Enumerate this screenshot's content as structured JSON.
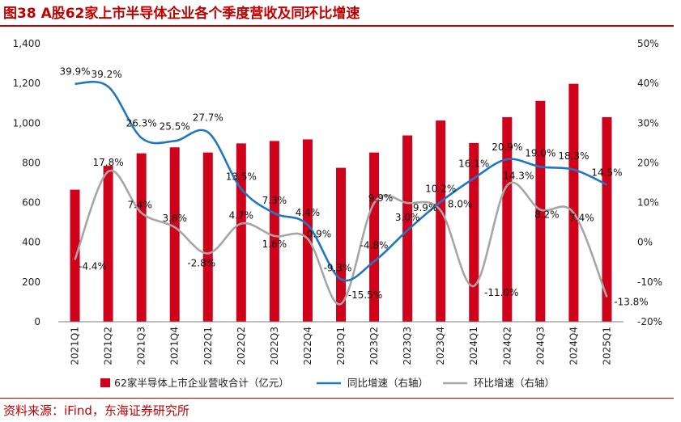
{
  "header": {
    "title": "图38 A股62家上市半导体企业各个季度营收及同环比增速"
  },
  "footer": {
    "source": "资料来源：iFind，东海证券研究所"
  },
  "colors": {
    "bar": "#d0021b",
    "yoy_line": "#1f77c4",
    "qoq_line": "#a6a6a6",
    "accent": "#c00000"
  },
  "chart_data": {
    "type": "bar",
    "categories": [
      "2021Q1",
      "2021Q2",
      "2021Q3",
      "2021Q4",
      "2022Q1",
      "2022Q2",
      "2022Q3",
      "2022Q4",
      "2023Q1",
      "2023Q2",
      "2023Q3",
      "2023Q4",
      "2024Q1",
      "2024Q2",
      "2024Q3",
      "2024Q4",
      "2025Q1"
    ],
    "series": [
      {
        "name": "62家半导体上市企业营收合计（亿元）",
        "kind": "bar",
        "axis": "left",
        "values": [
          665,
          785,
          848,
          878,
          852,
          898,
          910,
          918,
          775,
          852,
          938,
          1013,
          900,
          1030,
          1112,
          1198,
          1030
        ]
      },
      {
        "name": "同比增速（右轴）",
        "kind": "line",
        "axis": "right",
        "values": [
          39.9,
          39.2,
          26.3,
          25.5,
          27.7,
          13.5,
          7.3,
          4.4,
          -9.3,
          -4.8,
          3.0,
          10.2,
          16.1,
          20.9,
          19.0,
          18.3,
          14.5
        ],
        "labels": [
          "39.9%",
          "39.2%",
          "26.3%",
          "25.5%",
          "27.7%",
          "13.5%",
          "7.3%",
          "4.4%",
          "-9.3%",
          "-4.8%",
          "3.0%",
          "10.2%",
          "16.1%",
          "20.9%",
          "19.0%",
          "18.3%",
          "14.5%"
        ]
      },
      {
        "name": "环比增速（右轴）",
        "kind": "line",
        "axis": "right",
        "values": [
          -4.4,
          17.8,
          7.4,
          3.8,
          -2.8,
          4.7,
          1.6,
          0.9,
          -15.5,
          9.9,
          9.9,
          8.0,
          -11.0,
          14.3,
          8.2,
          7.4,
          -13.8
        ],
        "labels": [
          "-4.4%",
          "17.8%",
          "7.4%",
          "3.8%",
          "-2.8%",
          "4.7%",
          "1.6%",
          "0.9%",
          "-15.5%",
          "9.9%",
          "9.9%",
          "8.0%",
          "-11.0%",
          "14.3%",
          "8.2%",
          "7.4%",
          "-13.8%"
        ]
      }
    ],
    "y_left": {
      "lim": [
        0,
        1400
      ],
      "ticks": [
        0,
        200,
        400,
        600,
        800,
        1000,
        1200,
        1400
      ],
      "tick_labels": [
        "0",
        "200",
        "400",
        "600",
        "800",
        "1,000",
        "1,200",
        "1,400"
      ]
    },
    "y_right": {
      "lim": [
        -20,
        50
      ],
      "ticks": [
        -20,
        -10,
        0,
        10,
        20,
        30,
        40,
        50
      ],
      "tick_labels": [
        "-20%",
        "-10%",
        "0%",
        "10%",
        "20%",
        "30%",
        "40%",
        "50%"
      ]
    },
    "grid": false,
    "legend_position": "bottom"
  }
}
